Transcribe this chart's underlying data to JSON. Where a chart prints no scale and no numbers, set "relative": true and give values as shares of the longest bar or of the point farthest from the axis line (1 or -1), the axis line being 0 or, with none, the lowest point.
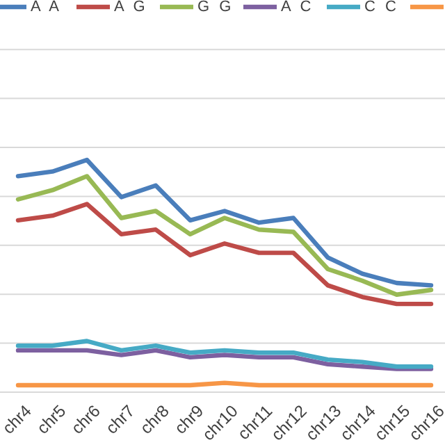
{
  "chart_data": {
    "type": "line",
    "relative": true,
    "grid": true,
    "legend": "top",
    "categories": [
      "chr4",
      "chr5",
      "chr6",
      "chr7",
      "chr8",
      "chr9",
      "chr10",
      "chr11",
      "chr12",
      "chr13",
      "chr14",
      "chr15",
      "chr16"
    ],
    "series": [
      {
        "name": "A A",
        "color": "#4a7ebb",
        "values": [
          0.93,
          0.95,
          1.0,
          0.84,
          0.89,
          0.74,
          0.78,
          0.73,
          0.75,
          0.58,
          0.51,
          0.47,
          0.46
        ]
      },
      {
        "name": "A G",
        "color": "#be4b48",
        "values": [
          0.74,
          0.76,
          0.81,
          0.68,
          0.7,
          0.59,
          0.64,
          0.6,
          0.6,
          0.46,
          0.41,
          0.38,
          0.38
        ]
      },
      {
        "name": "G G",
        "color": "#98b954",
        "values": [
          0.83,
          0.87,
          0.93,
          0.75,
          0.78,
          0.68,
          0.75,
          0.7,
          0.69,
          0.53,
          0.48,
          0.42,
          0.44
        ]
      },
      {
        "name": "A C",
        "color": "#7d60a0",
        "values": [
          0.18,
          0.18,
          0.18,
          0.16,
          0.18,
          0.15,
          0.16,
          0.15,
          0.15,
          0.12,
          0.11,
          0.1,
          0.1
        ]
      },
      {
        "name": "C C",
        "color": "#46aac5",
        "values": [
          0.2,
          0.2,
          0.22,
          0.18,
          0.2,
          0.17,
          0.18,
          0.17,
          0.17,
          0.14,
          0.13,
          0.11,
          0.11
        ]
      },
      {
        "color": "#f79646",
        "values": [
          0.03,
          0.03,
          0.03,
          0.03,
          0.03,
          0.03,
          0.04,
          0.03,
          0.03,
          0.03,
          0.03,
          0.03,
          0.03
        ]
      }
    ]
  }
}
